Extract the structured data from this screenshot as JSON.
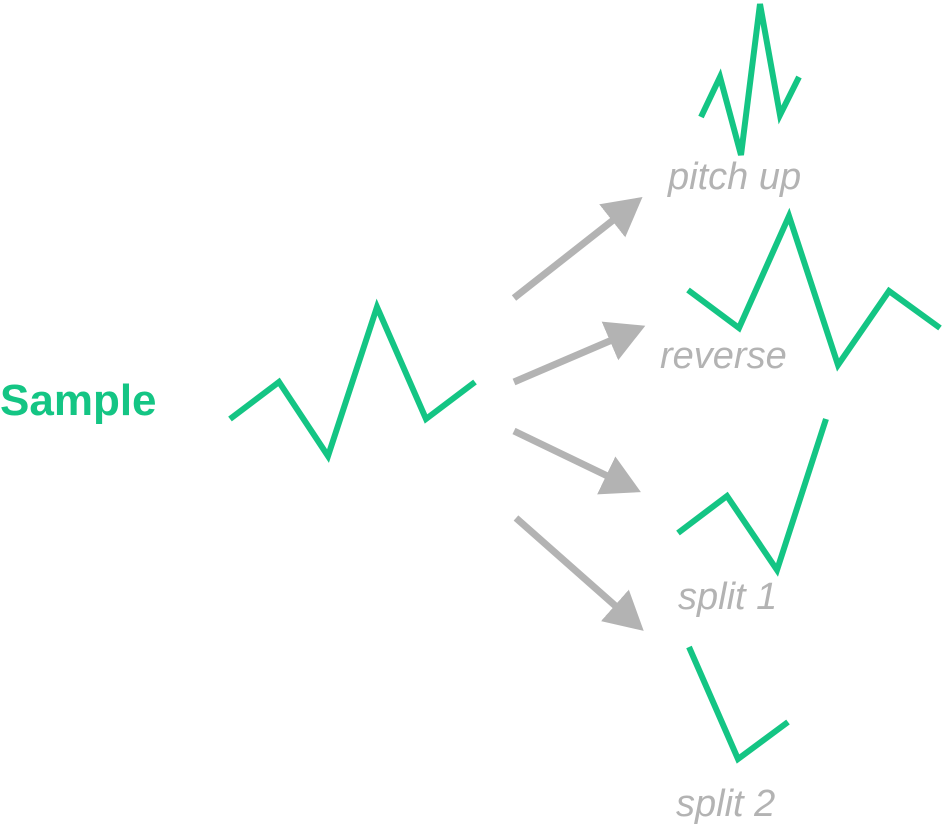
{
  "colors": {
    "accent": "#14c584",
    "muted": "#b3b3b3",
    "background": "#ffffff"
  },
  "source": {
    "label": "Sample"
  },
  "variants": [
    {
      "label": "pitch up"
    },
    {
      "label": "reverse"
    },
    {
      "label": "split 1"
    },
    {
      "label": "split 2"
    }
  ]
}
